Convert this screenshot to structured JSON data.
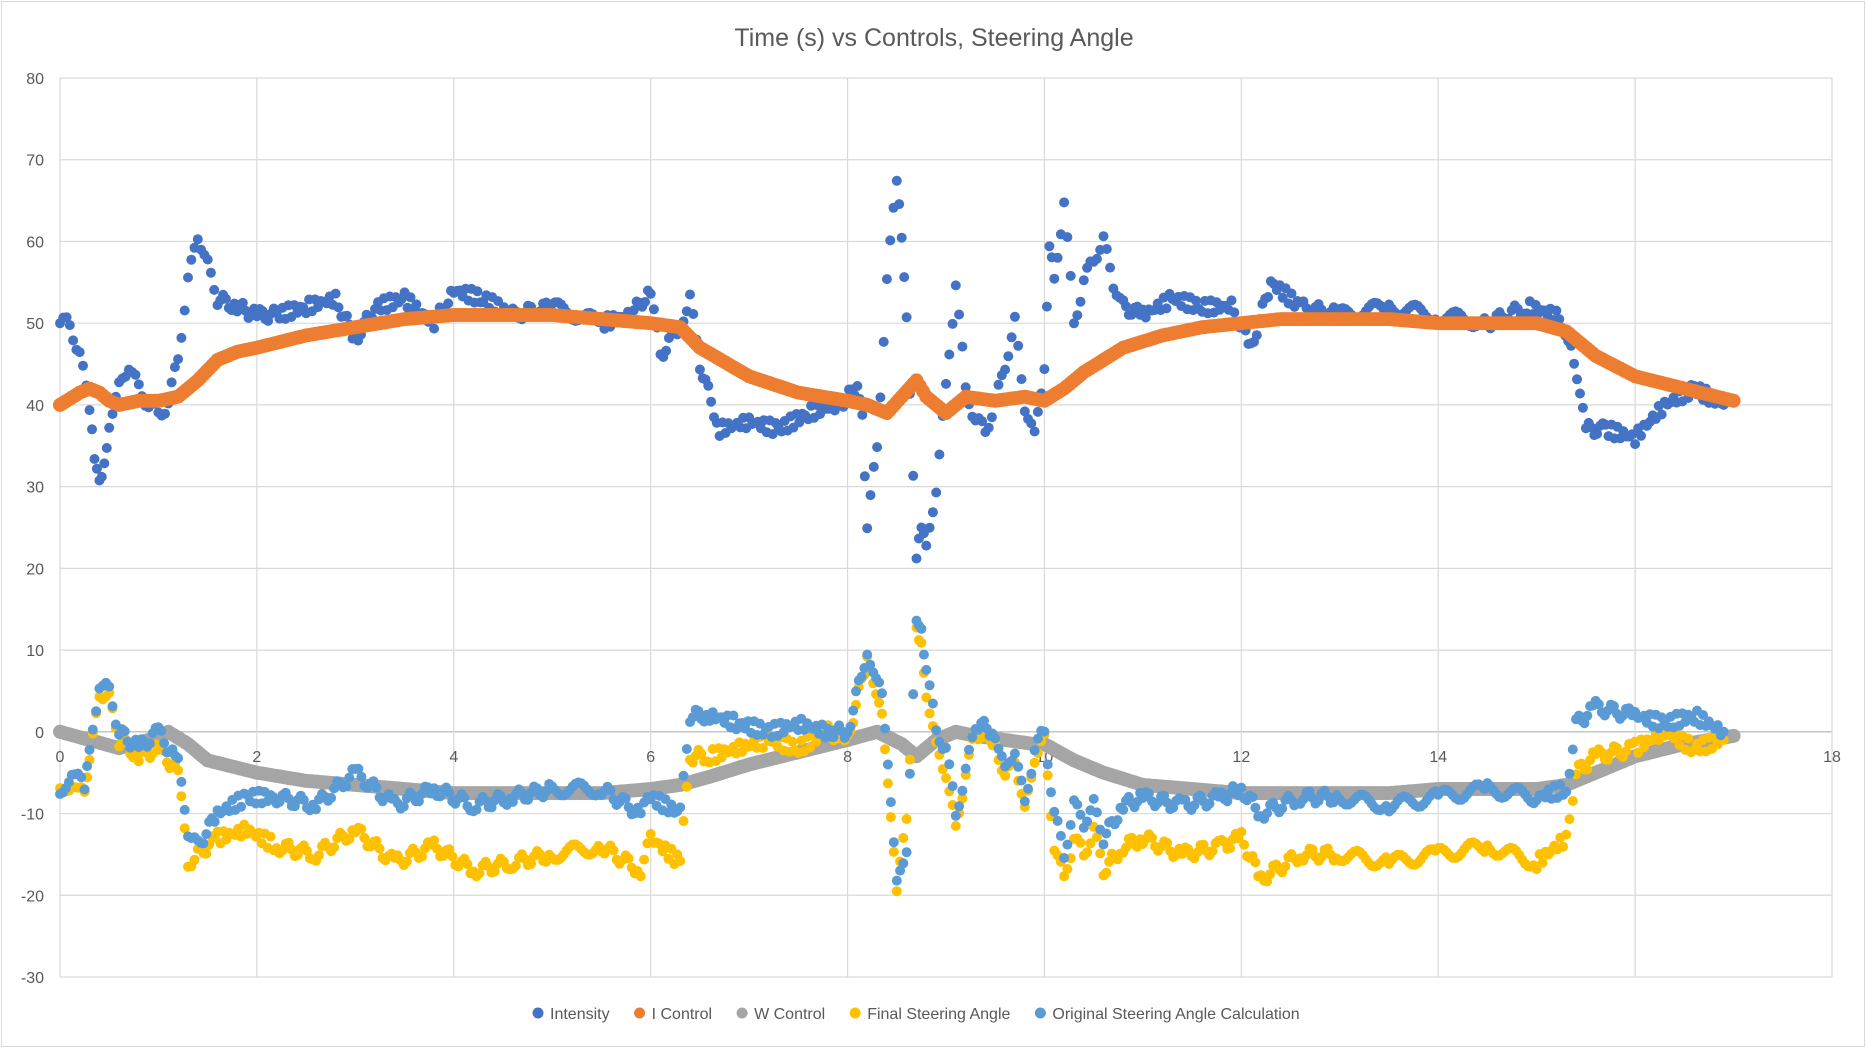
{
  "chart_data": {
    "type": "scatter",
    "title": "Time (s) vs Controls, Steering Angle",
    "xlabel": "",
    "ylabel": "",
    "xlim": [
      0,
      18
    ],
    "ylim": [
      -30,
      80
    ],
    "x_ticks": [
      0,
      2,
      4,
      6,
      8,
      10,
      12,
      14,
      16,
      18
    ],
    "y_ticks": [
      -30,
      -20,
      -10,
      0,
      10,
      20,
      30,
      40,
      50,
      60,
      70,
      80
    ],
    "grid": true,
    "legend_position": "bottom",
    "series": [
      {
        "name": "Intensity",
        "color": "#4472C4",
        "x": [
          0.0,
          0.1,
          0.2,
          0.3,
          0.35,
          0.4,
          0.45,
          0.5,
          0.6,
          0.7,
          0.8,
          0.9,
          1.0,
          1.1,
          1.2,
          1.3,
          1.4,
          1.5,
          1.6,
          1.8,
          2.0,
          2.2,
          2.5,
          2.8,
          3.0,
          3.2,
          3.5,
          3.8,
          4.0,
          4.3,
          4.6,
          5.0,
          5.5,
          5.8,
          6.0,
          6.1,
          6.3,
          6.4,
          6.5,
          6.7,
          7.0,
          7.3,
          7.6,
          7.9,
          8.1,
          8.15,
          8.2,
          8.3,
          8.4,
          8.5,
          8.55,
          8.6,
          8.7,
          8.75,
          8.8,
          8.9,
          9.0,
          9.1,
          9.2,
          9.3,
          9.4,
          9.5,
          9.6,
          9.7,
          9.8,
          9.9,
          10.0,
          10.05,
          10.1,
          10.2,
          10.3,
          10.4,
          10.5,
          10.6,
          10.7,
          10.8,
          11.0,
          11.3,
          11.6,
          11.9,
          12.1,
          12.3,
          12.6,
          13.0,
          13.5,
          14.0,
          14.5,
          14.9,
          15.2,
          15.35,
          15.5,
          15.7,
          16.0,
          16.3,
          16.6,
          16.9
        ],
        "y": [
          50,
          50,
          46,
          40,
          33,
          30,
          33,
          38,
          42,
          45,
          42,
          40,
          39,
          40,
          46,
          55,
          61,
          57,
          53,
          52,
          51,
          51,
          52,
          53,
          48,
          52,
          53,
          50,
          54,
          53,
          51,
          52,
          50,
          51,
          54,
          46,
          50,
          53,
          45,
          37,
          38,
          37,
          39,
          40,
          42,
          38,
          25,
          35,
          55,
          68,
          60,
          50,
          22,
          25,
          22,
          30,
          42,
          55,
          42,
          38,
          37,
          40,
          45,
          50,
          40,
          36,
          45,
          60,
          55,
          65,
          50,
          55,
          58,
          60,
          55,
          52,
          51,
          53,
          52,
          52,
          47,
          55,
          52,
          51,
          52,
          51,
          50,
          52,
          51,
          48,
          37,
          37,
          36,
          40,
          42,
          40
        ]
      },
      {
        "name": "I Control",
        "color": "#ED7D31",
        "x": [
          0.0,
          0.2,
          0.3,
          0.4,
          0.5,
          0.6,
          0.8,
          1.0,
          1.2,
          1.4,
          1.6,
          1.8,
          2.0,
          2.5,
          3.0,
          3.5,
          4.0,
          4.5,
          5.0,
          5.5,
          6.0,
          6.3,
          6.5,
          7.0,
          7.5,
          8.0,
          8.2,
          8.4,
          8.55,
          8.7,
          8.8,
          9.0,
          9.2,
          9.5,
          9.8,
          10.0,
          10.2,
          10.4,
          10.8,
          11.2,
          11.6,
          12.0,
          12.4,
          13.0,
          13.5,
          14.0,
          14.5,
          15.0,
          15.3,
          15.6,
          16.0,
          16.5,
          17.0
        ],
        "y": [
          40,
          41.5,
          42,
          41.5,
          40.5,
          40,
          40.5,
          40.5,
          41,
          43,
          45.5,
          46.5,
          47,
          48.5,
          49.5,
          50.5,
          51,
          51,
          51,
          50.5,
          50,
          49.5,
          47,
          43.5,
          41.5,
          40.5,
          40,
          39,
          41,
          43,
          41,
          39,
          41,
          40.5,
          41,
          40.5,
          42,
          44,
          47,
          48.5,
          49.5,
          50,
          50.5,
          50.5,
          50.5,
          50,
          50,
          50,
          49,
          46,
          43.5,
          42,
          40.5
        ]
      },
      {
        "name": "W Control",
        "color": "#A5A5A5",
        "x": [
          0.0,
          0.3,
          0.6,
          0.9,
          1.1,
          1.3,
          1.5,
          2.0,
          2.5,
          3.0,
          3.5,
          4.0,
          4.5,
          5.0,
          5.5,
          6.0,
          6.3,
          6.6,
          7.0,
          7.5,
          8.0,
          8.3,
          8.55,
          8.7,
          8.9,
          9.1,
          9.3,
          9.6,
          9.9,
          10.0,
          10.3,
          10.6,
          11.0,
          11.5,
          12.0,
          12.5,
          13.0,
          13.5,
          14.0,
          14.5,
          15.0,
          15.3,
          15.6,
          16.0,
          16.5,
          17.0
        ],
        "y": [
          0,
          -1,
          -2,
          -1,
          0,
          -1.5,
          -3.5,
          -5,
          -6,
          -6.5,
          -7,
          -7.5,
          -7.5,
          -7.5,
          -7.5,
          -7,
          -6.5,
          -5.5,
          -4,
          -2.5,
          -1,
          0,
          -1.5,
          -3,
          -1,
          0,
          -0.5,
          -1,
          -1.5,
          -1.5,
          -3.5,
          -5,
          -6.5,
          -7,
          -7.5,
          -7.5,
          -7.5,
          -7.5,
          -7,
          -7,
          -7,
          -6.5,
          -5,
          -3,
          -1.5,
          -0.5
        ]
      },
      {
        "name": "Final Steering Angle",
        "color": "#FFC000",
        "x": [
          0.0,
          0.15,
          0.25,
          0.3,
          0.4,
          0.5,
          0.6,
          0.8,
          1.0,
          1.2,
          1.3,
          1.4,
          1.6,
          1.9,
          2.2,
          2.6,
          3.0,
          3.4,
          3.8,
          4.2,
          4.6,
          5.0,
          5.5,
          5.9,
          6.0,
          6.3,
          6.4,
          6.6,
          6.9,
          7.2,
          7.5,
          7.8,
          8.0,
          8.2,
          8.35,
          8.5,
          8.6,
          8.7,
          8.75,
          8.8,
          8.9,
          9.0,
          9.1,
          9.2,
          9.3,
          9.5,
          9.6,
          9.7,
          9.8,
          9.9,
          10.0,
          10.1,
          10.2,
          10.3,
          10.4,
          10.5,
          10.6,
          10.8,
          11.0,
          11.4,
          11.8,
          12.0,
          12.2,
          12.6,
          13.0,
          13.5,
          14.0,
          14.5,
          15.0,
          15.3,
          15.4,
          15.6,
          16.0,
          16.3,
          16.6,
          16.9
        ],
        "y": [
          -7,
          -6,
          -8,
          -4,
          5,
          4,
          -1,
          -3,
          -2,
          -5,
          -16,
          -15,
          -13,
          -12,
          -14,
          -15,
          -12,
          -16,
          -14,
          -17,
          -16,
          -15,
          -14,
          -17,
          -13,
          -16,
          -3,
          -3,
          -2,
          -1,
          -2,
          0,
          -1,
          9,
          3,
          -20,
          -10,
          12,
          11,
          5,
          -2,
          -5,
          -12,
          -5,
          0,
          -1,
          -6,
          -3,
          -10,
          -3,
          -1,
          -14,
          -18,
          -13,
          -15,
          -12,
          -17,
          -14,
          -13,
          -15,
          -14,
          -13,
          -18,
          -15,
          -15,
          -16,
          -15,
          -14,
          -16,
          -13,
          -5,
          -3,
          -2,
          0,
          -2,
          -1
        ]
      },
      {
        "name": "Original Steering Angle Calculation",
        "color": "#5B9BD5",
        "x": [
          0.0,
          0.15,
          0.25,
          0.3,
          0.4,
          0.5,
          0.6,
          0.8,
          1.0,
          1.2,
          1.3,
          1.4,
          1.6,
          1.9,
          2.2,
          2.6,
          3.0,
          3.4,
          3.8,
          4.2,
          4.6,
          5.0,
          5.5,
          5.9,
          6.0,
          6.3,
          6.4,
          6.6,
          6.9,
          7.2,
          7.5,
          7.8,
          8.0,
          8.2,
          8.35,
          8.5,
          8.6,
          8.7,
          8.75,
          8.8,
          8.9,
          9.0,
          9.1,
          9.2,
          9.3,
          9.5,
          9.6,
          9.7,
          9.8,
          9.9,
          10.0,
          10.1,
          10.2,
          10.3,
          10.4,
          10.5,
          10.6,
          10.8,
          11.0,
          11.4,
          11.8,
          12.0,
          12.2,
          12.6,
          13.0,
          13.5,
          14.0,
          14.5,
          15.0,
          15.3,
          15.4,
          15.6,
          16.0,
          16.3,
          16.6,
          16.9
        ],
        "y": [
          -7,
          -5,
          -7,
          -3,
          6,
          5,
          0,
          -2,
          0,
          -4,
          -12,
          -14,
          -10,
          -8,
          -8,
          -9,
          -5,
          -9,
          -7,
          -9,
          -8,
          -7,
          -7,
          -10,
          -8,
          -10,
          2,
          2,
          1,
          0,
          1,
          0,
          0,
          10,
          5,
          -19,
          -14,
          13,
          12,
          8,
          0,
          -2,
          -10,
          -5,
          1,
          0,
          -5,
          -2,
          -9,
          -2,
          0,
          -10,
          -15,
          -9,
          -11,
          -9,
          -13,
          -9,
          -8,
          -9,
          -8,
          -7,
          -10,
          -8,
          -8,
          -9,
          -8,
          -7,
          -8,
          -7,
          1,
          3,
          2,
          1,
          2,
          0
        ]
      }
    ]
  }
}
